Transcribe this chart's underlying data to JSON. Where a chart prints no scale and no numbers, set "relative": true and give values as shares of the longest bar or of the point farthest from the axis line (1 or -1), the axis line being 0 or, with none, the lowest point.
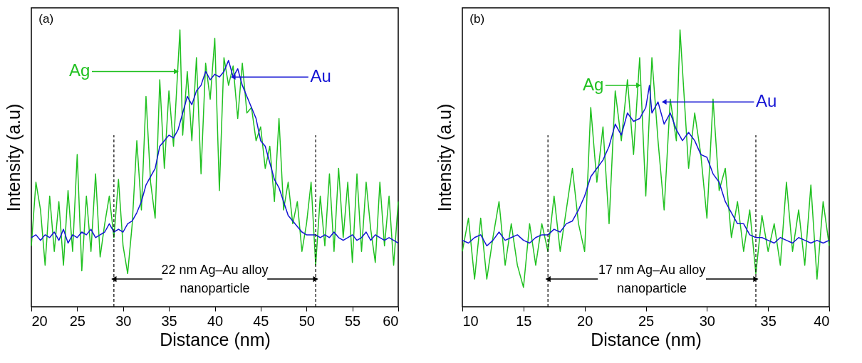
{
  "chart_data": [
    {
      "type": "line",
      "relative": true,
      "xlabel": "Distance (nm)",
      "ylabel": "Intensity (a.u)",
      "xlim": [
        20,
        60
      ],
      "xticks": [
        20,
        25,
        30,
        35,
        40,
        45,
        50,
        55,
        60
      ],
      "legend": "top",
      "marker": "none",
      "line_style": "solid",
      "annotations": [
        "(a)",
        "22 nm Ag–Au alloy\nnanoparticle"
      ],
      "ref_lines": [
        {
          "axis": "x",
          "value": 29,
          "color": "#000000",
          "line_style": "dashed"
        },
        {
          "axis": "x",
          "value": 51,
          "color": "#000000",
          "line_style": "dashed"
        }
      ],
      "series": [
        {
          "name": "Ag",
          "color": "#21c121",
          "x": [
            20,
            20.5,
            21,
            21.5,
            22,
            22.5,
            23,
            23.5,
            24,
            24.5,
            25,
            25.5,
            26,
            26.5,
            27,
            27.5,
            28,
            28.5,
            29,
            29.5,
            30,
            30.5,
            31,
            31.5,
            32,
            32.5,
            33,
            33.5,
            34,
            34.5,
            35,
            35.5,
            36.2,
            36.5,
            37,
            37.5,
            38,
            38.5,
            39,
            39.5,
            40,
            40.5,
            41,
            41.5,
            42,
            42.5,
            43,
            43.5,
            44,
            44.5,
            45,
            45.5,
            46,
            46.5,
            47,
            47.5,
            48,
            48.5,
            49,
            49.5,
            50,
            50.5,
            51,
            51.5,
            52,
            52.5,
            53,
            53.5,
            54,
            54.5,
            55,
            55.5,
            56,
            56.5,
            57,
            57.5,
            58,
            58.5,
            59,
            59.5,
            60
          ],
          "values": [
            0.22,
            0.45,
            0.35,
            0.15,
            0.4,
            0.2,
            0.38,
            0.15,
            0.42,
            0.2,
            0.55,
            0.13,
            0.4,
            0.2,
            0.48,
            0.18,
            0.3,
            0.4,
            0.25,
            0.46,
            0.22,
            0.12,
            0.3,
            0.6,
            0.35,
            0.76,
            0.45,
            0.32,
            0.82,
            0.5,
            0.78,
            0.58,
            1.0,
            0.62,
            0.85,
            0.6,
            0.9,
            0.48,
            0.88,
            0.75,
            0.97,
            0.42,
            0.9,
            0.8,
            0.87,
            0.68,
            0.88,
            0.7,
            0.72,
            0.6,
            0.65,
            0.5,
            0.58,
            0.38,
            0.68,
            0.35,
            0.45,
            0.3,
            0.38,
            0.2,
            0.3,
            0.45,
            0.15,
            0.4,
            0.22,
            0.48,
            0.2,
            0.5,
            0.25,
            0.45,
            0.16,
            0.48,
            0.2,
            0.45,
            0.28,
            0.16,
            0.45,
            0.22,
            0.4,
            0.15,
            0.38
          ]
        },
        {
          "name": "Au",
          "color": "#1515d4",
          "x": [
            20,
            20.5,
            21,
            21.5,
            22,
            22.5,
            23,
            23.5,
            24,
            24.5,
            25,
            25.5,
            26,
            26.5,
            27,
            27.5,
            28,
            28.5,
            29,
            29.5,
            30,
            30.5,
            31,
            31.5,
            32,
            32.5,
            33,
            33.5,
            34,
            34.5,
            35,
            35.5,
            36,
            36.5,
            37,
            37.5,
            38,
            38.5,
            39,
            39.5,
            40,
            40.5,
            41,
            41.5,
            42,
            42.5,
            43,
            43.5,
            44,
            44.5,
            45,
            45.5,
            46,
            46.5,
            47,
            47.5,
            48,
            48.5,
            49,
            49.5,
            50,
            50.5,
            51,
            51.5,
            52,
            52.5,
            53,
            53.5,
            54,
            54.5,
            55,
            55.5,
            56,
            56.5,
            57,
            57.5,
            58,
            58.5,
            59,
            59.5,
            60
          ],
          "values": [
            0.25,
            0.26,
            0.24,
            0.26,
            0.25,
            0.27,
            0.24,
            0.28,
            0.23,
            0.26,
            0.25,
            0.27,
            0.26,
            0.28,
            0.25,
            0.26,
            0.27,
            0.3,
            0.27,
            0.28,
            0.27,
            0.3,
            0.31,
            0.34,
            0.38,
            0.44,
            0.47,
            0.5,
            0.58,
            0.6,
            0.62,
            0.61,
            0.64,
            0.7,
            0.76,
            0.73,
            0.78,
            0.8,
            0.85,
            0.82,
            0.84,
            0.83,
            0.85,
            0.89,
            0.83,
            0.86,
            0.8,
            0.76,
            0.72,
            0.68,
            0.6,
            0.58,
            0.52,
            0.46,
            0.43,
            0.38,
            0.33,
            0.31,
            0.29,
            0.27,
            0.26,
            0.26,
            0.26,
            0.25,
            0.26,
            0.25,
            0.27,
            0.25,
            0.24,
            0.25,
            0.26,
            0.24,
            0.25,
            0.27,
            0.24,
            0.26,
            0.25,
            0.24,
            0.25,
            0.24,
            0.23
          ]
        }
      ]
    },
    {
      "type": "line",
      "relative": true,
      "xlabel": "Distance (nm)",
      "ylabel": "Intensity (a.u)",
      "xlim": [
        10,
        40
      ],
      "xticks": [
        10,
        15,
        20,
        25,
        30,
        35,
        40
      ],
      "legend": "top",
      "marker": "none",
      "line_style": "solid",
      "annotations": [
        "(b)",
        "17 nm Ag–Au alloy\nnanoparticle"
      ],
      "ref_lines": [
        {
          "axis": "x",
          "value": 17,
          "color": "#000000",
          "line_style": "dashed"
        },
        {
          "axis": "x",
          "value": 34,
          "color": "#000000",
          "line_style": "dashed"
        }
      ],
      "series": [
        {
          "name": "Ag",
          "color": "#21c121",
          "x": [
            10,
            10.5,
            11,
            11.5,
            12,
            12.5,
            13,
            13.5,
            14,
            14.5,
            15,
            15.5,
            16,
            16.5,
            17,
            17.5,
            18,
            18.5,
            19,
            19.5,
            20,
            20.5,
            21,
            21.5,
            22,
            22.5,
            23,
            23.5,
            24,
            24.5,
            25,
            25.5,
            26,
            26.5,
            27,
            27.5,
            27.8,
            28.5,
            29,
            29.5,
            30,
            30.5,
            31,
            31.5,
            32,
            32.5,
            33,
            33.5,
            34,
            34.5,
            35,
            35.5,
            36,
            36.5,
            37,
            37.5,
            38,
            38.5,
            39,
            39.5,
            40
          ],
          "values": [
            0.2,
            0.32,
            0.1,
            0.32,
            0.1,
            0.25,
            0.38,
            0.15,
            0.3,
            0.15,
            0.07,
            0.3,
            0.15,
            0.3,
            0.2,
            0.4,
            0.2,
            0.35,
            0.5,
            0.3,
            0.2,
            0.72,
            0.45,
            0.65,
            0.3,
            0.78,
            0.6,
            0.82,
            0.55,
            0.9,
            0.4,
            0.9,
            0.6,
            0.35,
            0.75,
            0.6,
            1.0,
            0.5,
            0.7,
            0.55,
            0.32,
            0.75,
            0.42,
            0.5,
            0.25,
            0.38,
            0.2,
            0.35,
            0.12,
            0.33,
            0.2,
            0.3,
            0.15,
            0.45,
            0.2,
            0.35,
            0.15,
            0.44,
            0.1,
            0.38,
            0.22
          ]
        },
        {
          "name": "Au",
          "color": "#1515d4",
          "x": [
            10,
            10.5,
            11,
            11.5,
            12,
            12.5,
            13,
            13.5,
            14,
            14.5,
            15,
            15.5,
            16,
            16.5,
            17,
            17.5,
            18,
            18.5,
            19,
            19.5,
            20,
            20.5,
            21,
            21.5,
            22,
            22.5,
            23,
            23.5,
            24,
            24.5,
            25,
            25.3,
            25.5,
            26,
            26.5,
            27,
            27.5,
            28,
            28.5,
            29,
            29.5,
            30,
            30.5,
            31,
            31.5,
            32,
            32.5,
            33,
            33.5,
            34,
            34.5,
            35,
            35.5,
            36,
            36.5,
            37,
            37.5,
            38,
            38.5,
            39,
            39.5,
            40
          ],
          "values": [
            0.24,
            0.23,
            0.25,
            0.26,
            0.22,
            0.24,
            0.27,
            0.24,
            0.25,
            0.26,
            0.24,
            0.23,
            0.25,
            0.26,
            0.26,
            0.28,
            0.27,
            0.3,
            0.31,
            0.35,
            0.4,
            0.47,
            0.5,
            0.53,
            0.58,
            0.66,
            0.62,
            0.7,
            0.67,
            0.68,
            0.72,
            0.8,
            0.7,
            0.74,
            0.66,
            0.7,
            0.64,
            0.6,
            0.63,
            0.6,
            0.55,
            0.54,
            0.48,
            0.45,
            0.38,
            0.34,
            0.3,
            0.3,
            0.26,
            0.25,
            0.25,
            0.24,
            0.23,
            0.25,
            0.24,
            0.23,
            0.25,
            0.24,
            0.23,
            0.24,
            0.23,
            0.24
          ]
        }
      ]
    }
  ]
}
